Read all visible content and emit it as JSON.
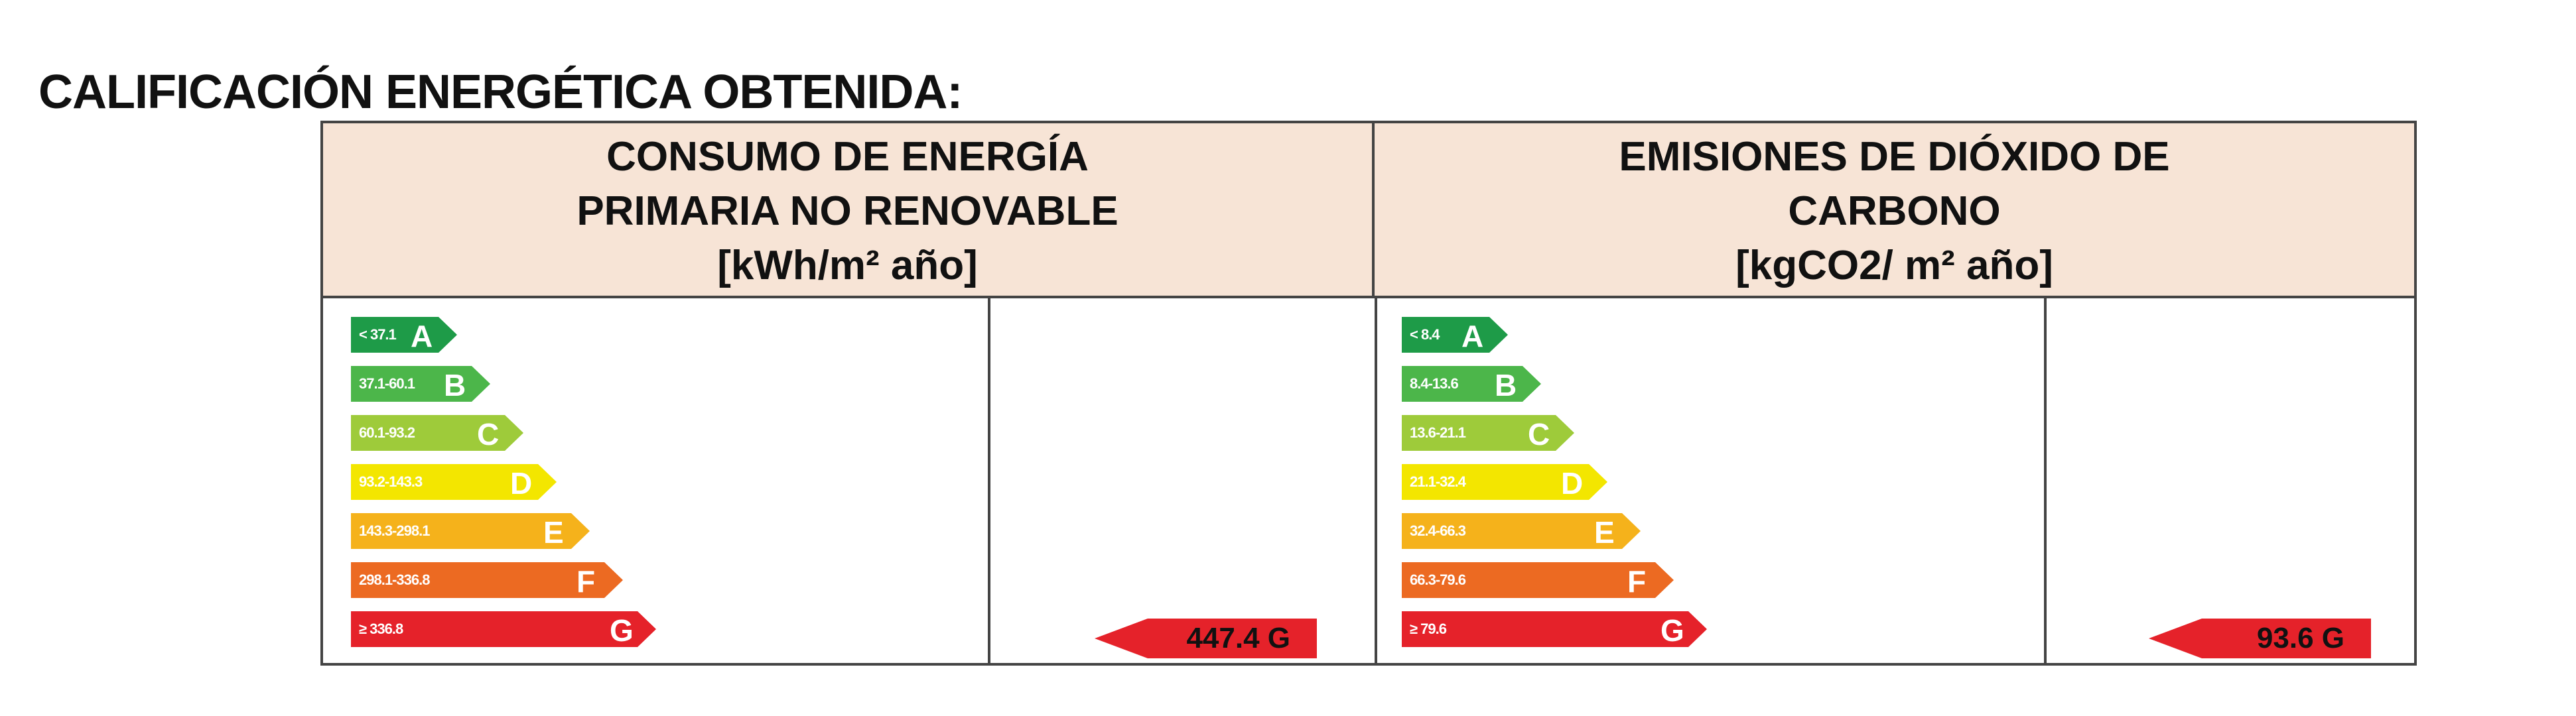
{
  "title": "CALIFICACIÓN ENERGÉTICA OBTENIDA:",
  "colors": {
    "A": "#1e9b48",
    "B": "#4cb64a",
    "C": "#9ecb3a",
    "D": "#f3e600",
    "E": "#f5b21b",
    "F": "#ec6a22",
    "G": "#e5222a",
    "header_bg": "#f7e4d6",
    "border": "#444444"
  },
  "consumption": {
    "header_line1": "CONSUMO DE ENERGÍA",
    "header_line2": "PRIMARIA NO RENOVABLE",
    "unit": "[kWh/m² año]",
    "bands": [
      {
        "range": "< 37.1",
        "letter": "A"
      },
      {
        "range": "37.1-60.1",
        "letter": "B"
      },
      {
        "range": "60.1-93.2",
        "letter": "C"
      },
      {
        "range": "93.2-143.3",
        "letter": "D"
      },
      {
        "range": "143.3-298.1",
        "letter": "E"
      },
      {
        "range": "298.1-336.8",
        "letter": "F"
      },
      {
        "range": "≥ 336.8",
        "letter": "G"
      }
    ],
    "result_value": "447.4 G"
  },
  "emissions": {
    "header_line1": "EMISIONES DE DIÓXIDO DE",
    "header_line2": "CARBONO",
    "unit": "[kgCO2/ m² año]",
    "bands": [
      {
        "range": "< 8.4",
        "letter": "A"
      },
      {
        "range": "8.4-13.6",
        "letter": "B"
      },
      {
        "range": "13.6-21.1",
        "letter": "C"
      },
      {
        "range": "21.1-32.4",
        "letter": "D"
      },
      {
        "range": "32.4-66.3",
        "letter": "E"
      },
      {
        "range": "66.3-79.6",
        "letter": "F"
      },
      {
        "range": "≥ 79.6",
        "letter": "G"
      }
    ],
    "result_value": "93.6 G"
  }
}
